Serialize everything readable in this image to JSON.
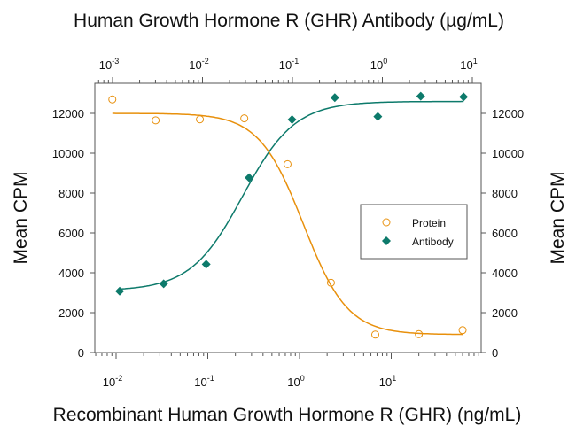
{
  "chart_data": {
    "type": "scatter",
    "title_top": "Human Growth Hormone R (GHR) Antibody (µg/mL)",
    "xlabel": "Recombinant Human Growth Hormone R (GHR) (ng/mL)",
    "ylabel_left": "Mean CPM",
    "ylabel_right": "Mean CPM",
    "x_scale": "log",
    "x_bottom_lim": [
      0.006,
      90
    ],
    "x_bottom_ticks": [
      "-2",
      "-1",
      "0",
      "1"
    ],
    "x_top_lim": [
      0.0007,
      11
    ],
    "x_top_ticks": [
      "-3",
      "-2",
      "-1",
      "0",
      "1"
    ],
    "ylim": [
      0,
      13500
    ],
    "y_ticks": [
      "0",
      "2000",
      "4000",
      "6000",
      "8000",
      "10000",
      "12000"
    ],
    "grid": false,
    "legend_position": "right",
    "series": [
      {
        "name": "Protein",
        "axis": "bottom",
        "marker": "open-circle",
        "color": "#e8900c",
        "x": [
          0.0091,
          0.027,
          0.082,
          0.25,
          0.74,
          2.2,
          6.7,
          20,
          60
        ],
        "y": [
          12700,
          11650,
          11700,
          11750,
          9450,
          3500,
          900,
          920,
          1120
        ]
      },
      {
        "name": "Antibody",
        "axis": "top",
        "marker": "filled-diamond",
        "color": "#0d7a6b",
        "x": [
          0.0012,
          0.0037,
          0.011,
          0.033,
          0.099,
          0.296,
          0.89,
          2.67,
          8
        ],
        "y": [
          3080,
          3450,
          4430,
          8770,
          11690,
          12790,
          11840,
          12860,
          12830
        ]
      }
    ]
  }
}
